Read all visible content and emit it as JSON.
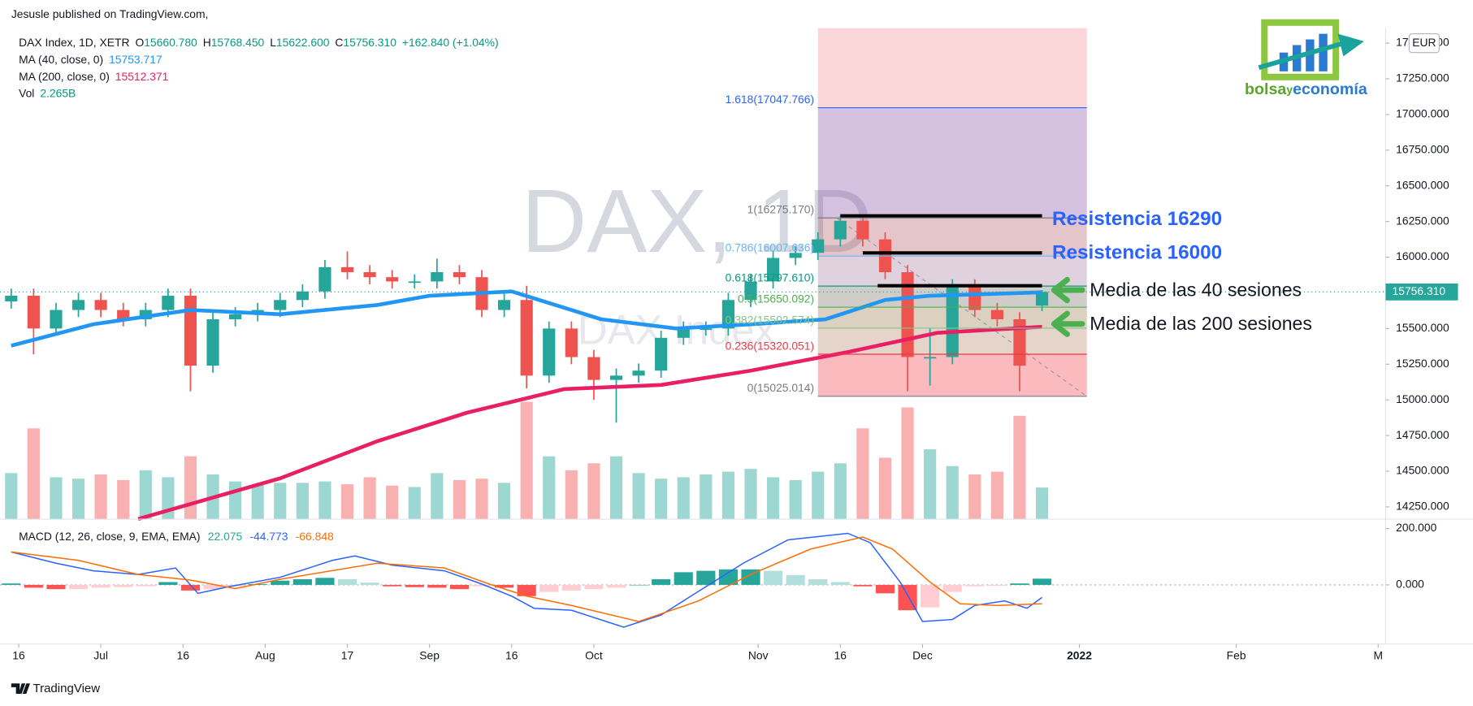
{
  "header": {
    "publisher": "Jesusle published on TradingView.com,"
  },
  "footer": {
    "brand": "TradingView"
  },
  "logo": {
    "parts": [
      "bolsa",
      "y",
      "economía"
    ]
  },
  "chart_data": [
    {
      "type": "candlestick",
      "legend_title": "DAX Index, 1D, XETR",
      "ohlc_legend": [
        {
          "label": "O",
          "value": "15660.780"
        },
        {
          "label": "H",
          "value": "15768.450"
        },
        {
          "label": "L",
          "value": "15622.600"
        },
        {
          "label": "C",
          "value": "15756.310"
        }
      ],
      "change": "+162.840 (+1.04%)",
      "watermark": [
        "DAX, 1D",
        "DAX Index"
      ],
      "currency": "EUR",
      "last_price_label": "15756.310",
      "up_color": "#26a69a",
      "down_color": "#ef5350",
      "x": [
        0,
        3,
        6,
        9,
        12,
        15,
        18,
        21,
        24,
        27,
        30,
        33,
        36,
        39,
        42,
        45,
        48,
        51,
        54,
        57,
        60,
        63,
        66,
        69,
        72,
        75,
        78,
        81,
        84,
        87,
        90,
        93,
        96,
        99,
        102,
        105,
        108,
        111,
        114,
        117,
        120,
        123,
        126,
        129,
        132,
        135,
        138
      ],
      "open": [
        15690,
        15730,
        15500,
        15630,
        15700,
        15630,
        15565,
        15630,
        15730,
        15240,
        15565,
        15600,
        15630,
        15700,
        15760,
        15930,
        15895,
        15860,
        15830,
        15830,
        15895,
        15860,
        15630,
        15700,
        15170,
        15500,
        15300,
        15140,
        15170,
        15205,
        15435,
        15500,
        15500,
        15700,
        15830,
        15995,
        16030,
        16125,
        16255,
        16125,
        15895,
        15300,
        15300,
        15795,
        15630,
        15565,
        15660.78
      ],
      "high": [
        15780,
        15780,
        15680,
        15750,
        15750,
        15680,
        15680,
        15780,
        15780,
        15615,
        15650,
        15680,
        15750,
        15810,
        15980,
        16040,
        15945,
        15910,
        15880,
        15990,
        15945,
        15910,
        15750,
        15800,
        15550,
        15550,
        15350,
        15220,
        15255,
        15485,
        15550,
        15550,
        15750,
        15880,
        16045,
        16080,
        16175,
        16290,
        16290,
        16175,
        15945,
        15500,
        15845,
        15845,
        15680,
        15615,
        15768.45
      ],
      "low": [
        15640,
        15320,
        15450,
        15580,
        15580,
        15515,
        15515,
        15580,
        15060,
        15190,
        15515,
        15550,
        15580,
        15650,
        15710,
        15845,
        15810,
        15780,
        15780,
        15780,
        15810,
        15580,
        15580,
        15080,
        15120,
        15250,
        15000,
        14840,
        15120,
        15155,
        15385,
        15450,
        15450,
        15650,
        15780,
        15945,
        15980,
        16075,
        16075,
        15845,
        15060,
        15100,
        15250,
        15580,
        15515,
        15060,
        15622.6
      ],
      "close": [
        15730,
        15500,
        15630,
        15700,
        15630,
        15565,
        15630,
        15730,
        15240,
        15565,
        15600,
        15630,
        15700,
        15760,
        15930,
        15895,
        15860,
        15830,
        15830,
        15895,
        15860,
        15630,
        15700,
        15170,
        15500,
        15300,
        15140,
        15170,
        15205,
        15435,
        15500,
        15500,
        15700,
        15830,
        15995,
        16030,
        16125,
        16255,
        16125,
        15895,
        15300,
        15300,
        15795,
        15630,
        15565,
        15240,
        15756.31
      ],
      "volume": {
        "label": "Vol",
        "value_label": "2.265B",
        "values": [
          3.3,
          6.5,
          3.0,
          2.9,
          3.2,
          2.8,
          3.5,
          3.0,
          4.5,
          3.2,
          2.7,
          2.5,
          2.6,
          2.6,
          2.7,
          2.5,
          3.0,
          2.4,
          2.3,
          3.3,
          2.8,
          2.9,
          2.6,
          8.4,
          4.5,
          3.5,
          4.0,
          4.5,
          3.3,
          2.9,
          3.0,
          3.2,
          3.4,
          3.6,
          3.0,
          2.8,
          3.4,
          4.0,
          6.5,
          4.4,
          8.0,
          5.0,
          3.8,
          3.2,
          3.4,
          7.4,
          2.265
        ]
      },
      "series": [
        {
          "name": "MA (40, close, 0)",
          "value_label": "15753.717",
          "color": "#2196f3",
          "x": [
            0,
            11,
            24,
            36,
            49,
            56,
            67,
            79,
            89,
            99,
            109,
            117,
            123,
            138
          ],
          "values": [
            15380,
            15530,
            15630,
            15600,
            15665,
            15730,
            15760,
            15565,
            15500,
            15530,
            15565,
            15700,
            15730,
            15753.717
          ]
        },
        {
          "name": "MA (200, close, 0)",
          "value_label": "15512.371",
          "color": "#e91e63",
          "x": [
            17,
            36,
            49,
            61,
            74,
            87,
            99,
            112,
            124,
            138
          ],
          "values": [
            14165,
            14450,
            14710,
            14910,
            15075,
            15105,
            15205,
            15335,
            15470,
            15512.371
          ]
        }
      ],
      "fib": {
        "x": [
          108,
          144
        ],
        "levels": [
          {
            "value": 17047.766,
            "label": "1.618(17047.766)",
            "color": "#2962ff"
          },
          {
            "value": 16275.17,
            "label": "1(16275.170)",
            "color": "#787b86"
          },
          {
            "value": 16007.636,
            "label": "0.786(16007.636)",
            "color": "#64b5f6"
          },
          {
            "value": 15797.61,
            "label": "0.618(15797.610)",
            "color": "#089981"
          },
          {
            "value": 15650.092,
            "label": "0.5(15650.092)",
            "color": "#4caf50"
          },
          {
            "value": 15502.574,
            "label": "0.382(15502.574)",
            "color": "#81c784"
          },
          {
            "value": 15320.051,
            "label": "0.236(15320.051)",
            "color": "#f23645"
          },
          {
            "value": 15025.014,
            "label": "0(15025.014)",
            "color": "#787b86"
          }
        ]
      },
      "lines": [
        {
          "x": [
            111,
            138
          ],
          "y": 16290
        },
        {
          "x": [
            114,
            138
          ],
          "y": 16030
        },
        {
          "x": [
            116,
            138
          ],
          "y": 15800
        }
      ],
      "annotations": [
        "Resistencia 16290",
        "Resistencia 16000",
        "Media de las 40 sesiones",
        "Media de las 200 sesiones"
      ],
      "xlim": [
        -1.5,
        184
      ],
      "ylim": [
        14164,
        17605
      ],
      "yticks": [
        {
          "value": 14250,
          "label": "14250.000"
        },
        {
          "value": 14500,
          "label": "14500.000"
        },
        {
          "value": 14750,
          "label": "14750.000"
        },
        {
          "value": 15000,
          "label": "15000.000"
        },
        {
          "value": 15250,
          "label": "15250.000"
        },
        {
          "value": 15500,
          "label": "15500.000"
        },
        {
          "value": 15750,
          "label": "15750.000"
        },
        {
          "value": 16000,
          "label": "16000.000"
        },
        {
          "value": 16250,
          "label": "16250.000"
        },
        {
          "value": 16500,
          "label": "16500.000"
        },
        {
          "value": 16750,
          "label": "16750.000"
        },
        {
          "value": 17000,
          "label": "17000.000"
        },
        {
          "value": 17250,
          "label": "17250.000"
        },
        {
          "value": 17500,
          "label": "17500.000"
        }
      ],
      "xticks": [
        {
          "value": 1,
          "label": "16"
        },
        {
          "value": 12,
          "label": "Jul"
        },
        {
          "value": 23,
          "label": "16"
        },
        {
          "value": 34,
          "label": "Aug"
        },
        {
          "value": 45,
          "label": "17"
        },
        {
          "value": 56,
          "label": "Sep"
        },
        {
          "value": 67,
          "label": "16"
        },
        {
          "value": 78,
          "label": "Oct"
        },
        {
          "value": 100,
          "label": "Nov"
        },
        {
          "value": 111,
          "label": "16"
        },
        {
          "value": 122,
          "label": "Dec"
        },
        {
          "value": 143,
          "label": "2022"
        },
        {
          "value": 164,
          "label": "Feb"
        },
        {
          "value": 183,
          "label": "M"
        }
      ]
    },
    {
      "type": "macd",
      "legend_title": "MACD (12, 26, close, 9, EMA, EMA)",
      "value_labels": [
        "22.075",
        "-44.773",
        "-66.848"
      ],
      "series": [
        {
          "color": "#2962ff",
          "x": [
            0,
            6,
            11,
            17,
            22,
            25,
            29,
            36,
            43,
            46,
            51,
            58,
            63,
            67,
            70,
            75,
            82,
            87,
            92,
            98,
            104,
            112,
            115,
            119,
            122,
            126,
            129,
            133,
            136,
            138
          ],
          "values": [
            117,
            77,
            50,
            37,
            60,
            -30,
            -7,
            27,
            87,
            103,
            70,
            50,
            3,
            -40,
            -83,
            -90,
            -150,
            -107,
            -23,
            77,
            160,
            183,
            150,
            10,
            -130,
            -123,
            -73,
            -57,
            -83,
            -44.773
          ]
        },
        {
          "color": "#ff6d00",
          "x": [
            0,
            9,
            17,
            24,
            30,
            36,
            49,
            58,
            64,
            69,
            75,
            84,
            92,
            99,
            107,
            114,
            118,
            123,
            127,
            132,
            138
          ],
          "values": [
            117,
            87,
            37,
            17,
            -13,
            20,
            77,
            60,
            3,
            -40,
            -73,
            -130,
            -57,
            37,
            127,
            170,
            127,
            10,
            -67,
            -73,
            -66.848
          ]
        }
      ],
      "histogram": {
        "x": [
          0,
          3,
          6,
          9,
          12,
          15,
          18,
          21,
          24,
          27,
          30,
          33,
          36,
          39,
          42,
          45,
          48,
          51,
          54,
          57,
          60,
          63,
          66,
          69,
          72,
          75,
          78,
          81,
          84,
          87,
          90,
          93,
          96,
          99,
          102,
          105,
          108,
          111,
          114,
          117,
          120,
          123,
          126,
          129,
          132,
          135,
          138
        ],
        "values": [
          5,
          -10,
          -15,
          -15,
          -10,
          -8,
          -5,
          10,
          -20,
          -15,
          -5,
          3,
          15,
          20,
          25,
          20,
          8,
          -5,
          -8,
          -10,
          -15,
          -5,
          -10,
          -40,
          -25,
          -20,
          -15,
          -10,
          0,
          20,
          45,
          50,
          55,
          55,
          50,
          35,
          20,
          10,
          -5,
          -30,
          -90,
          -80,
          -25,
          -5,
          -3,
          5,
          22.075
        ]
      },
      "ylim": [
        -200,
        210
      ],
      "yticks": [
        {
          "value": 0,
          "label": "0.000"
        },
        {
          "value": 200,
          "label": "200.000"
        }
      ]
    }
  ]
}
